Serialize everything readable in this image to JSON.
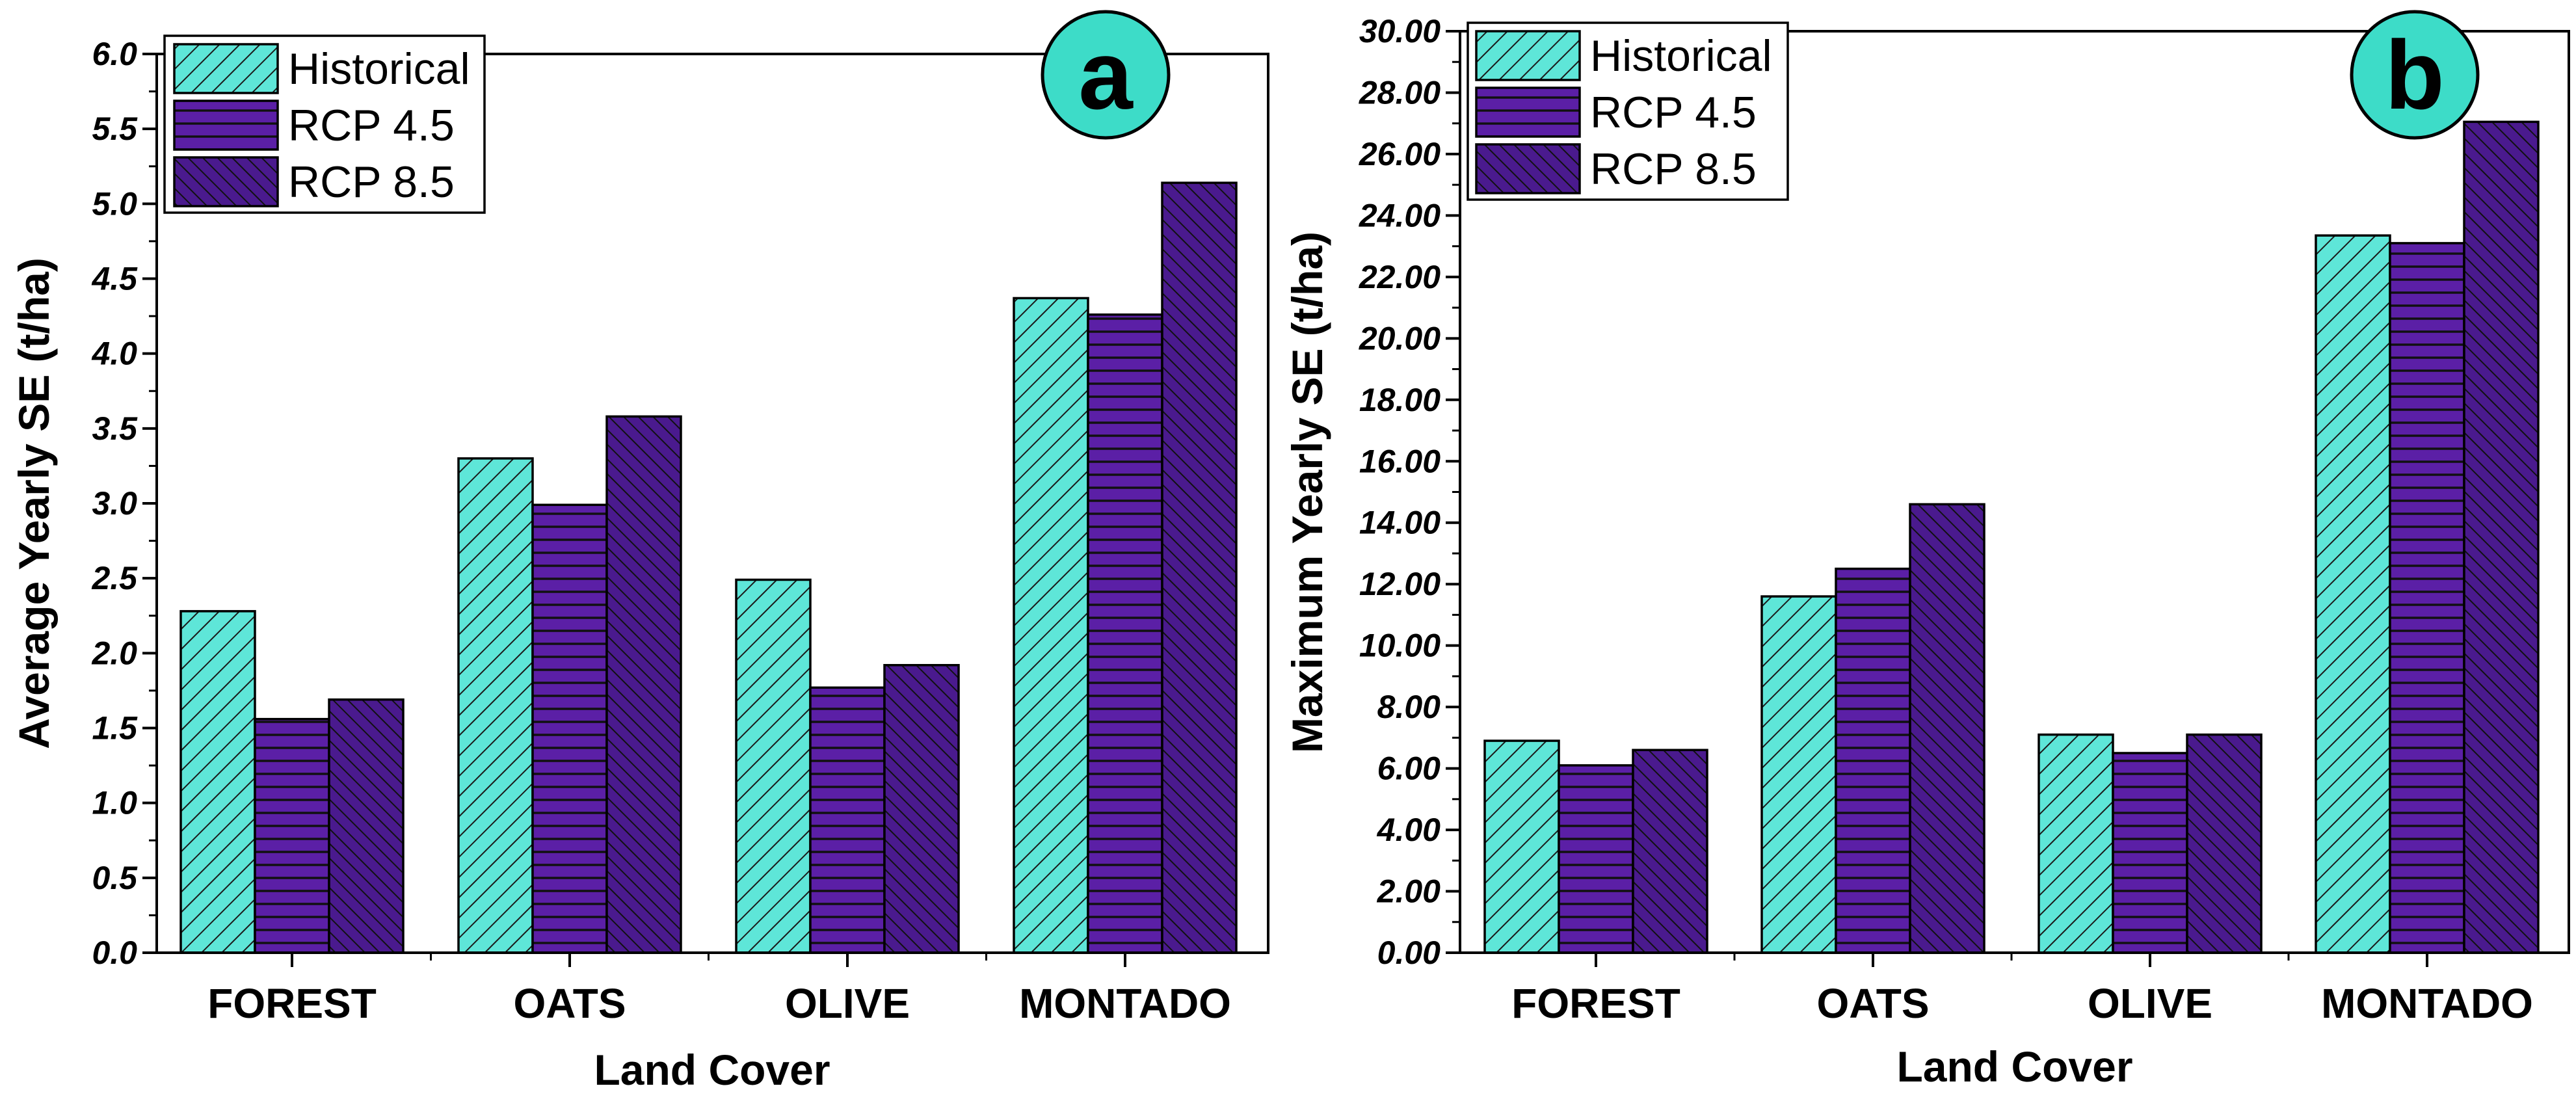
{
  "colors": {
    "historical": "#5ee6d8",
    "rcp45": "#5b1fa6",
    "rcp85": "#4a1a8e",
    "badge": "#3ddcc8",
    "stroke": "#000000"
  },
  "chart_data": [
    {
      "panel": "a",
      "type": "bar",
      "badge_label": "a",
      "title": "",
      "xlabel": "Land Cover",
      "ylabel": "Average Yearly SE (t/ha)",
      "categories": [
        "FOREST",
        "OATS",
        "OLIVE",
        "MONTADO"
      ],
      "ylim": [
        0,
        6
      ],
      "yticks": [
        "0.0",
        "0.5",
        "1.0",
        "1.5",
        "2.0",
        "2.5",
        "3.0",
        "3.5",
        "4.0",
        "4.5",
        "5.0",
        "5.5",
        "6.0"
      ],
      "legend_position": "top-left",
      "series": [
        {
          "key": "historical",
          "name": "Historical",
          "values": [
            2.28,
            3.3,
            2.49,
            4.37
          ]
        },
        {
          "key": "rcp45",
          "name": "RCP 4.5",
          "values": [
            1.56,
            2.99,
            1.77,
            4.26
          ]
        },
        {
          "key": "rcp85",
          "name": "RCP 8.5",
          "values": [
            1.69,
            3.58,
            1.92,
            5.14
          ]
        }
      ]
    },
    {
      "panel": "b",
      "type": "bar",
      "badge_label": "b",
      "title": "",
      "xlabel": "Land Cover",
      "ylabel": "Maximum Yearly SE (t/ha)",
      "categories": [
        "FOREST",
        "OATS",
        "OLIVE",
        "MONTADO"
      ],
      "ylim": [
        0,
        30
      ],
      "yticks": [
        "0.00",
        "2.00",
        "4.00",
        "6.00",
        "8.00",
        "10.00",
        "12.00",
        "14.00",
        "16.00",
        "18.00",
        "20.00",
        "22.00",
        "24.00",
        "26.00",
        "28.00",
        "30.00"
      ],
      "legend_position": "top-left",
      "series": [
        {
          "key": "historical",
          "name": "Historical",
          "values": [
            6.9,
            11.6,
            7.1,
            23.35
          ]
        },
        {
          "key": "rcp45",
          "name": "RCP 4.5",
          "values": [
            6.1,
            12.5,
            6.5,
            23.1
          ]
        },
        {
          "key": "rcp85",
          "name": "RCP 8.5",
          "values": [
            6.6,
            14.6,
            7.1,
            27.05
          ]
        }
      ]
    }
  ]
}
